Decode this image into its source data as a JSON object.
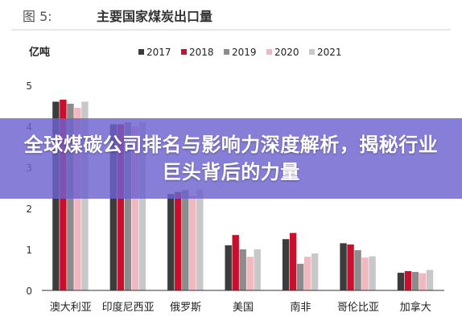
{
  "figure": {
    "label": "图 5:",
    "title": "主要国家煤炭出口量"
  },
  "overlay": {
    "title": "全球煤碳公司排名与影响力深度解析，揭秘行业巨头背后的力量"
  },
  "chart_data": {
    "type": "bar",
    "title": "主要国家煤炭出口量",
    "ylabel": "亿吨",
    "xlabel": "",
    "ylim": [
      0,
      5
    ],
    "yticks": [
      0,
      1,
      2,
      3,
      4,
      5
    ],
    "grid": false,
    "legend_position": "top",
    "categories": [
      "澳大利亚",
      "印度尼西亚",
      "俄罗斯",
      "美国",
      "南非",
      "哥伦比亚",
      "加拿大"
    ],
    "series": [
      {
        "name": "2017",
        "color": "#3c3c3c",
        "values": [
          4.6,
          4.05,
          2.35,
          1.1,
          1.25,
          1.15,
          0.43
        ]
      },
      {
        "name": "2018",
        "color": "#c8102e",
        "values": [
          4.65,
          4.05,
          2.4,
          1.35,
          1.4,
          1.12,
          0.47
        ]
      },
      {
        "name": "2019",
        "color": "#8c8c8c",
        "values": [
          4.55,
          4.1,
          2.45,
          1.0,
          0.65,
          0.98,
          0.45
        ]
      },
      {
        "name": "2020",
        "color": "#f2b8c0",
        "values": [
          4.45,
          4.0,
          2.3,
          0.82,
          0.82,
          0.8,
          0.42
        ]
      },
      {
        "name": "2021",
        "color": "#c8c8c8",
        "values": [
          4.6,
          4.1,
          2.45,
          1.0,
          0.9,
          0.83,
          0.5
        ]
      }
    ]
  }
}
